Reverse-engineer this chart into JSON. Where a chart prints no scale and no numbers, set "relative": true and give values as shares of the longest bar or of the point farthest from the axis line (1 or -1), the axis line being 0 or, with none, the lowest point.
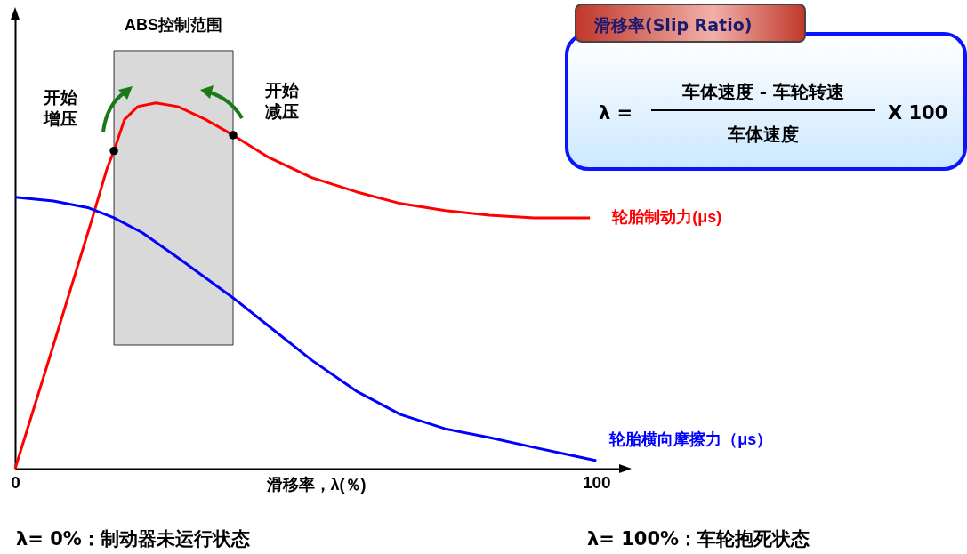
{
  "chart_data": {
    "type": "line",
    "relative": true,
    "xlabel": "滑移率，λ(％)",
    "xlim": [
      0,
      105
    ],
    "xticks": [
      0,
      100
    ],
    "grid": false,
    "series": [
      {
        "name": "轮胎制动力(μs)",
        "color": "#ff0000",
        "x": [
          0,
          6.6,
          13.3,
          15.8,
          17,
          18.8,
          21.1,
          24.2,
          28,
          32.6,
          37.5,
          43.3,
          51,
          58.7,
          66.3,
          74,
          81.6,
          89.3,
          98.9
        ],
        "values": [
          0,
          0.338,
          0.686,
          0.82,
          0.869,
          0.954,
          0.99,
          1,
          0.99,
          0.956,
          0.912,
          0.854,
          0.796,
          0.757,
          0.725,
          0.706,
          0.693,
          0.686,
          0.686
        ]
      },
      {
        "name": "轮胎横向摩擦力（μs）",
        "color": "#0000ff",
        "x": [
          0,
          6.6,
          12.7,
          17,
          21.9,
          28,
          37.5,
          43.3,
          51,
          58.7,
          66.3,
          74,
          81.6,
          89.3,
          100
        ],
        "values": [
          0.742,
          0.732,
          0.713,
          0.686,
          0.645,
          0.577,
          0.467,
          0.394,
          0.297,
          0.212,
          0.148,
          0.109,
          0.085,
          0.058,
          0.022
        ]
      },
      {
        "type": "scatter",
        "color": "#000000",
        "marker": "circle",
        "x": [
          17,
          37.5
        ],
        "values": [
          0.869,
          0.912
        ]
      }
    ],
    "bands": [
      {
        "axis": "x",
        "from": 17,
        "to": 37.5,
        "label": "ABS控制范围",
        "color": "#d9d9d9"
      }
    ],
    "annotations": [
      "滑移率(Slip Ratio)",
      "λ =",
      "车体速度 - 车轮转速",
      "车体速度",
      "X 100",
      "λ= 0%：制动器未运行状态",
      "λ= 100%：车轮抱死状态",
      {
        "text": "开始增压",
        "x": 17,
        "y": 0.869
      },
      {
        "text": "开始减压",
        "x": 37.5,
        "y": 0.912
      }
    ]
  }
}
